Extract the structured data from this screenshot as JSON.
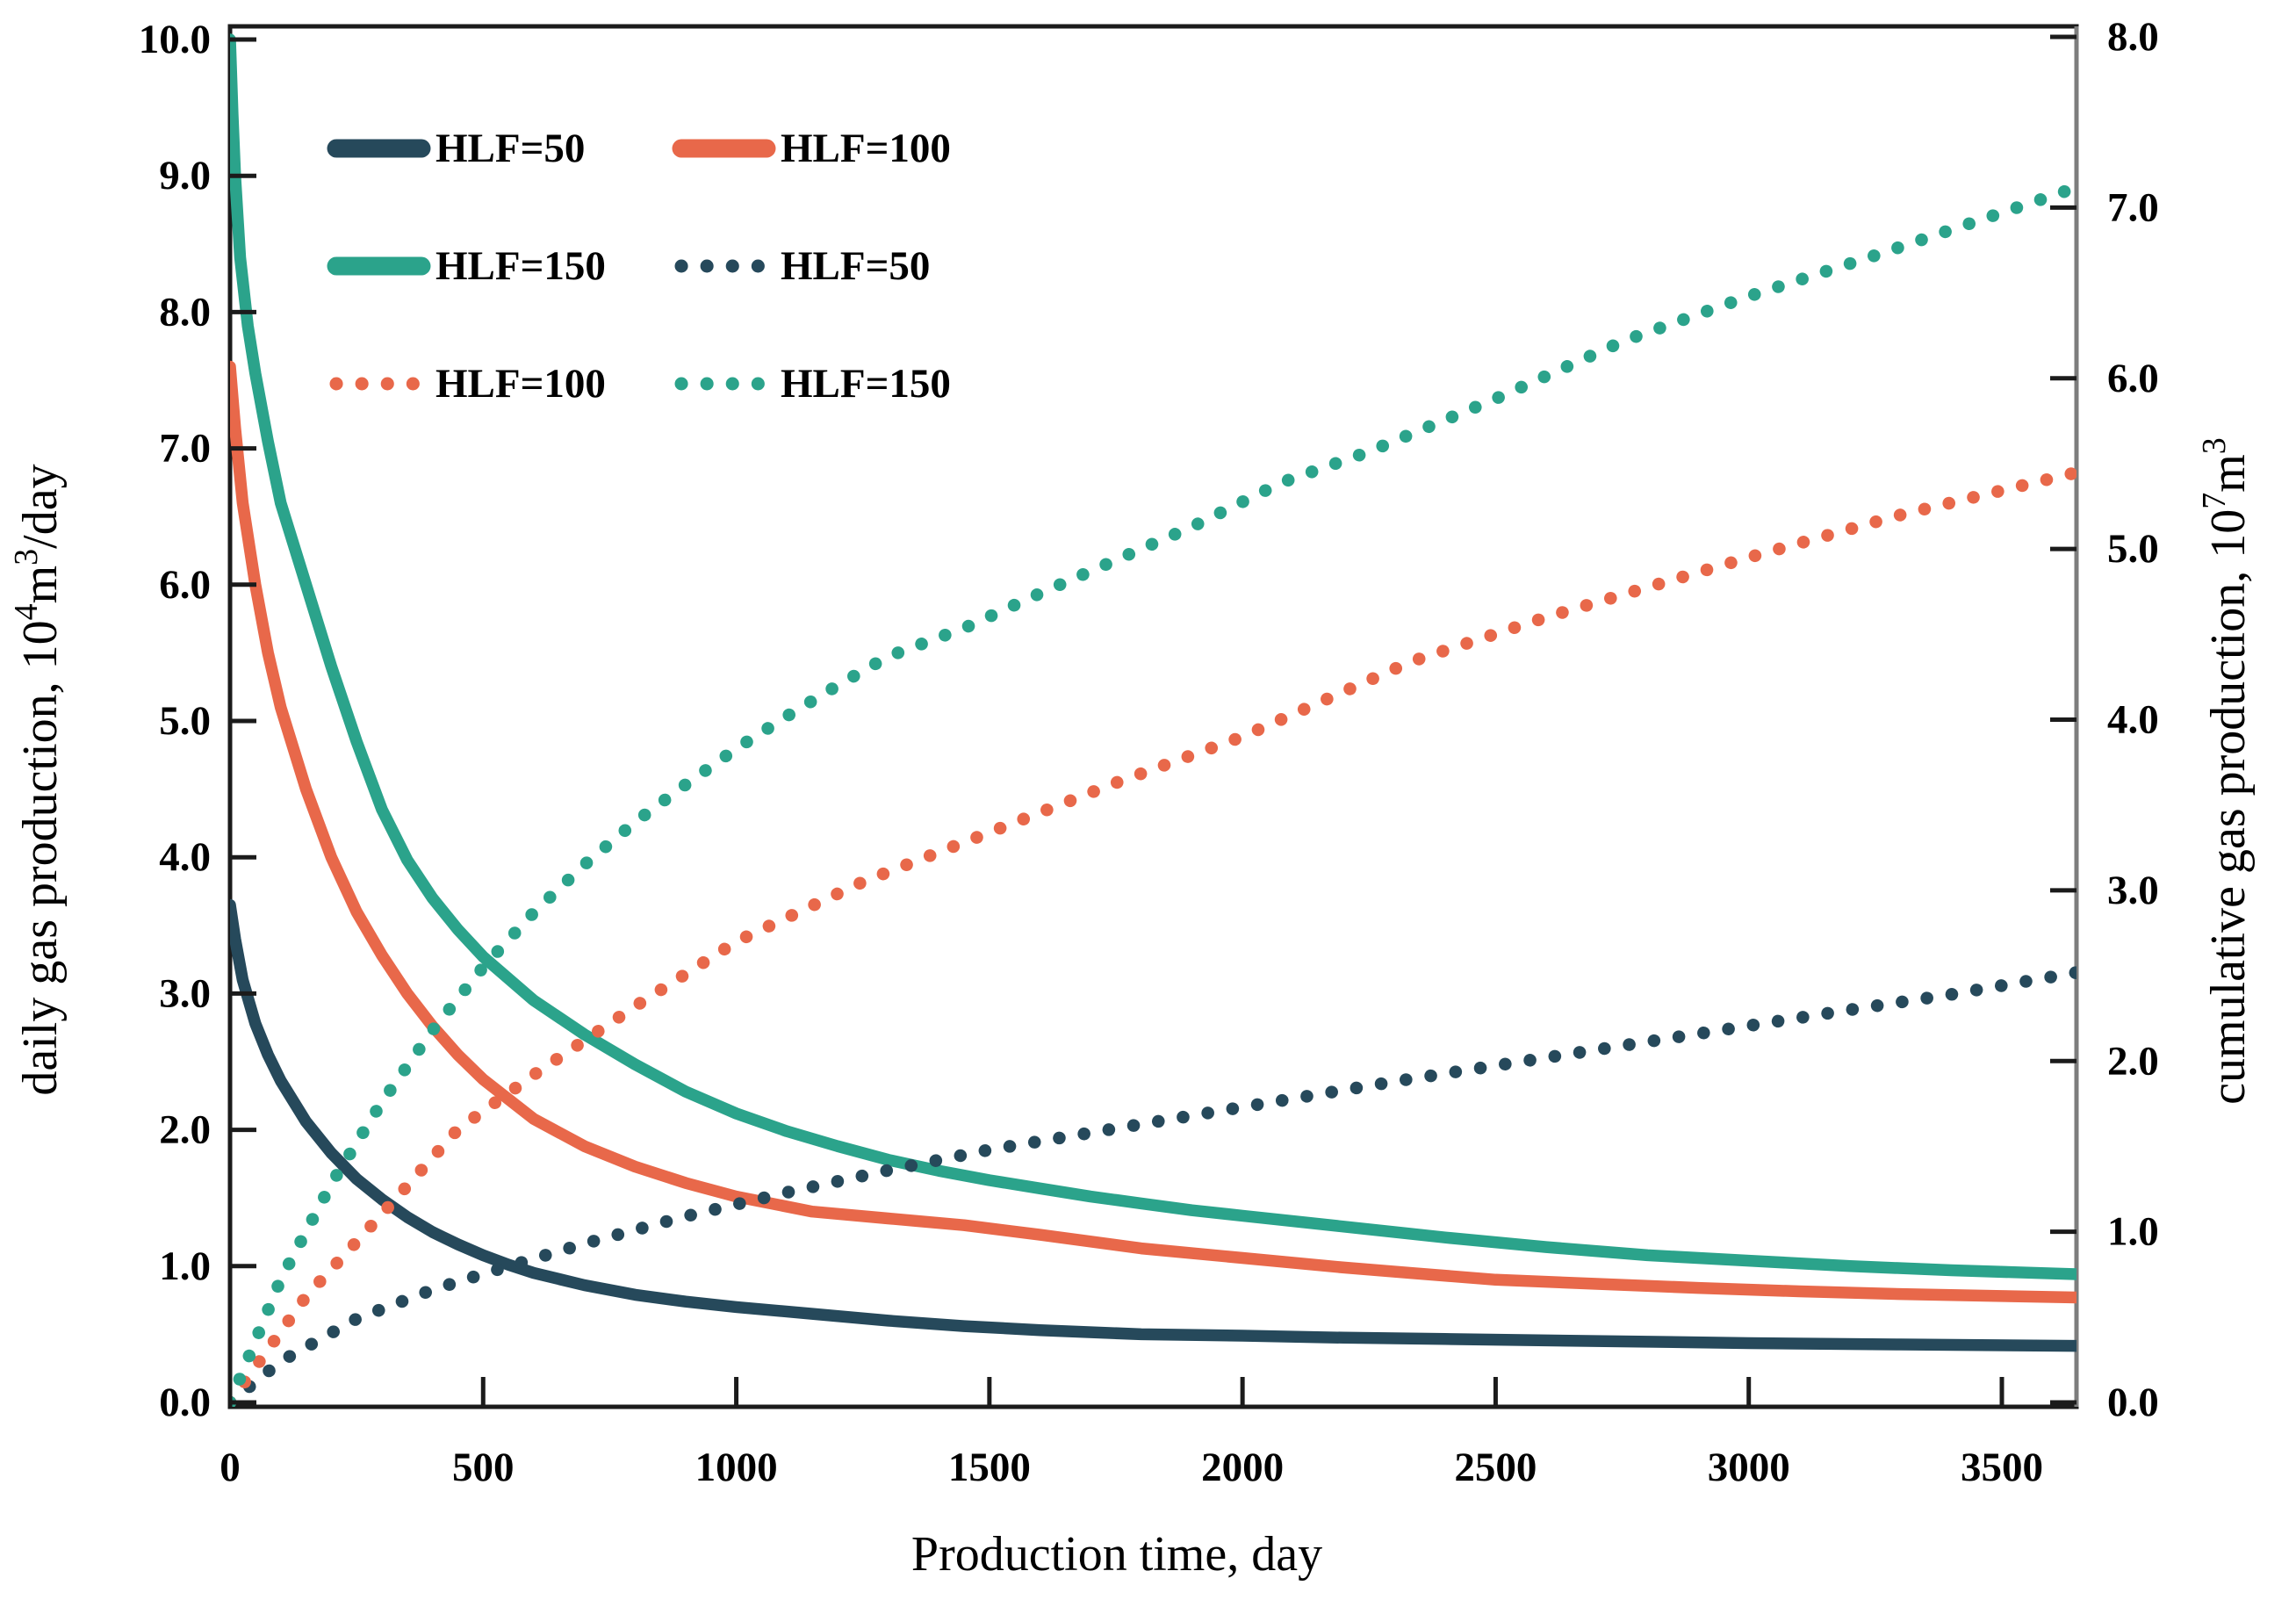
{
  "chart_data": {
    "type": "line",
    "title": "",
    "xlabel": "Production time, day",
    "ylabel_left": "daily gas production, 10⁴m³/day",
    "ylabel_right": "cumulative gas production, 10⁷m³",
    "ylabel_left_parts": [
      [
        "daily gas production, 10",
        false
      ],
      [
        "4",
        true
      ],
      [
        "m",
        false
      ],
      [
        "3",
        true
      ],
      [
        "/day",
        false
      ]
    ],
    "ylabel_right_parts": [
      [
        "cumulative gas production, 10",
        false
      ],
      [
        "7",
        true
      ],
      [
        "m",
        false
      ],
      [
        "3",
        true
      ]
    ],
    "x_range": [
      0,
      3650
    ],
    "x_ticks": [
      0,
      500,
      1000,
      1500,
      2000,
      2500,
      3000,
      3500
    ],
    "x_tick_labels": [
      "0",
      "500",
      "1000",
      "1500",
      "2000",
      "2500",
      "3000",
      "3500"
    ],
    "y_left_range": [
      0,
      10
    ],
    "y_left_ticks": [
      0,
      1,
      2,
      3,
      4,
      5,
      6,
      7,
      8,
      9,
      10
    ],
    "y_left_tick_labels": [
      "0.0",
      "1.0",
      "2.0",
      "3.0",
      "4.0",
      "5.0",
      "6.0",
      "7.0",
      "8.0",
      "9.0",
      "10.0"
    ],
    "y_right_range": [
      0,
      8
    ],
    "y_right_ticks": [
      0,
      1,
      2,
      3,
      4,
      5,
      6,
      7,
      8
    ],
    "y_right_tick_labels": [
      "0.0",
      "1.0",
      "2.0",
      "3.0",
      "4.0",
      "5.0",
      "6.0",
      "7.0",
      "8.0"
    ],
    "grid": false,
    "legend_position": "upper-left-inside",
    "colors": {
      "dark": "#26495B",
      "coral": "#E8684A",
      "teal": "#2BA38B",
      "axis": "#1b1b1b",
      "right_border": "#7d7d7d"
    },
    "legend": [
      {
        "label": "HLF=50",
        "style": "solid",
        "color": "#26495B"
      },
      {
        "label": "HLF=100",
        "style": "solid",
        "color": "#E8684A"
      },
      {
        "label": "HLF=150",
        "style": "solid",
        "color": "#2BA38B"
      },
      {
        "label": "HLF=50",
        "style": "dotted",
        "color": "#26495B"
      },
      {
        "label": "HLF=100",
        "style": "dotted",
        "color": "#E8684A"
      },
      {
        "label": "HLF=150",
        "style": "dotted",
        "color": "#2BA38B"
      }
    ],
    "series": [
      {
        "id": "daily-hlf-50",
        "name": "HLF=50",
        "role": "daily gas production",
        "axis": "left",
        "style": "solid",
        "color": "#26495B",
        "points": [
          [
            0,
            3.65
          ],
          [
            10,
            3.4
          ],
          [
            25,
            3.1
          ],
          [
            50,
            2.78
          ],
          [
            75,
            2.55
          ],
          [
            100,
            2.36
          ],
          [
            150,
            2.06
          ],
          [
            200,
            1.83
          ],
          [
            250,
            1.64
          ],
          [
            300,
            1.49
          ],
          [
            350,
            1.36
          ],
          [
            400,
            1.25
          ],
          [
            450,
            1.16
          ],
          [
            500,
            1.08
          ],
          [
            550,
            1.01
          ],
          [
            600,
            0.95
          ],
          [
            700,
            0.86
          ],
          [
            800,
            0.79
          ],
          [
            900,
            0.74
          ],
          [
            1000,
            0.7
          ],
          [
            1150,
            0.65
          ],
          [
            1300,
            0.6
          ],
          [
            1450,
            0.56
          ],
          [
            1600,
            0.53
          ],
          [
            1800,
            0.5
          ],
          [
            2000,
            0.49
          ],
          [
            2200,
            0.475
          ],
          [
            2400,
            0.465
          ],
          [
            2600,
            0.455
          ],
          [
            2800,
            0.445
          ],
          [
            3000,
            0.435
          ],
          [
            3300,
            0.425
          ],
          [
            3650,
            0.415
          ]
        ]
      },
      {
        "id": "daily-hlf-100",
        "name": "HLF=100",
        "role": "daily gas production",
        "axis": "left",
        "style": "solid",
        "color": "#E8684A",
        "points": [
          [
            0,
            7.6
          ],
          [
            10,
            7.15
          ],
          [
            25,
            6.6
          ],
          [
            50,
            6.0
          ],
          [
            75,
            5.5
          ],
          [
            100,
            5.1
          ],
          [
            150,
            4.5
          ],
          [
            200,
            4.0
          ],
          [
            250,
            3.6
          ],
          [
            300,
            3.28
          ],
          [
            350,
            3.0
          ],
          [
            400,
            2.76
          ],
          [
            450,
            2.55
          ],
          [
            500,
            2.37
          ],
          [
            600,
            2.08
          ],
          [
            700,
            1.88
          ],
          [
            800,
            1.73
          ],
          [
            900,
            1.61
          ],
          [
            1000,
            1.51
          ],
          [
            1150,
            1.4
          ],
          [
            1300,
            1.35
          ],
          [
            1450,
            1.3
          ],
          [
            1600,
            1.23
          ],
          [
            1800,
            1.13
          ],
          [
            2000,
            1.06
          ],
          [
            2200,
            0.99
          ],
          [
            2333,
            0.95
          ],
          [
            2500,
            0.9
          ],
          [
            2700,
            0.87
          ],
          [
            2900,
            0.84
          ],
          [
            3100,
            0.815
          ],
          [
            3300,
            0.795
          ],
          [
            3500,
            0.78
          ],
          [
            3650,
            0.77
          ]
        ]
      },
      {
        "id": "daily-hlf-150",
        "name": "HLF=150",
        "role": "daily gas production",
        "axis": "left",
        "style": "solid",
        "color": "#2BA38B",
        "points": [
          [
            0,
            10.0
          ],
          [
            5,
            9.45
          ],
          [
            10,
            9.0
          ],
          [
            20,
            8.4
          ],
          [
            35,
            7.9
          ],
          [
            50,
            7.55
          ],
          [
            75,
            7.05
          ],
          [
            100,
            6.6
          ],
          [
            125,
            6.3
          ],
          [
            150,
            6.0
          ],
          [
            200,
            5.4
          ],
          [
            250,
            4.85
          ],
          [
            300,
            4.35
          ],
          [
            350,
            3.98
          ],
          [
            400,
            3.7
          ],
          [
            450,
            3.47
          ],
          [
            500,
            3.27
          ],
          [
            600,
            2.95
          ],
          [
            700,
            2.7
          ],
          [
            800,
            2.48
          ],
          [
            900,
            2.28
          ],
          [
            1000,
            2.12
          ],
          [
            1100,
            1.99
          ],
          [
            1200,
            1.88
          ],
          [
            1300,
            1.78
          ],
          [
            1400,
            1.7
          ],
          [
            1500,
            1.63
          ],
          [
            1600,
            1.57
          ],
          [
            1700,
            1.51
          ],
          [
            1800,
            1.46
          ],
          [
            1900,
            1.41
          ],
          [
            2000,
            1.37
          ],
          [
            2200,
            1.29
          ],
          [
            2400,
            1.21
          ],
          [
            2600,
            1.14
          ],
          [
            2800,
            1.08
          ],
          [
            3000,
            1.04
          ],
          [
            3200,
            1.0
          ],
          [
            3400,
            0.97
          ],
          [
            3650,
            0.94
          ]
        ]
      },
      {
        "id": "cumulative-hlf-50",
        "name": "HLF=50",
        "role": "cumulative gas production",
        "axis": "right",
        "style": "dotted",
        "color": "#26495B",
        "points": [
          [
            0,
            0
          ],
          [
            100,
            0.24
          ],
          [
            250,
            0.49
          ],
          [
            400,
            0.66
          ],
          [
            508,
            0.76
          ],
          [
            700,
            0.93
          ],
          [
            900,
            1.09
          ],
          [
            1100,
            1.23
          ],
          [
            1300,
            1.36
          ],
          [
            1500,
            1.48
          ],
          [
            1700,
            1.58
          ],
          [
            2000,
            1.73
          ],
          [
            2300,
            1.88
          ],
          [
            2600,
            2.02
          ],
          [
            2900,
            2.16
          ],
          [
            3200,
            2.3
          ],
          [
            3400,
            2.39
          ],
          [
            3650,
            2.52
          ]
        ]
      },
      {
        "id": "cumulative-hlf-100",
        "name": "HLF=100",
        "role": "cumulative gas production",
        "axis": "right",
        "style": "dotted",
        "color": "#E8684A",
        "points": [
          [
            0,
            0
          ],
          [
            150,
            0.62
          ],
          [
            293,
            1.08
          ],
          [
            450,
            1.6
          ],
          [
            610,
            1.94
          ],
          [
            800,
            2.32
          ],
          [
            1000,
            2.7
          ],
          [
            1250,
            3.05
          ],
          [
            1466,
            3.3
          ],
          [
            1750,
            3.63
          ],
          [
            2000,
            3.9
          ],
          [
            2333,
            4.34
          ],
          [
            2600,
            4.6
          ],
          [
            3000,
            4.95
          ],
          [
            3300,
            5.2
          ],
          [
            3650,
            5.45
          ]
        ]
      },
      {
        "id": "cumulative-hlf-150",
        "name": "HLF=150",
        "role": "cumulative gas production",
        "axis": "right",
        "style": "dotted",
        "color": "#2BA38B",
        "points": [
          [
            0,
            0
          ],
          [
            100,
            0.72
          ],
          [
            200,
            1.28
          ],
          [
            300,
            1.76
          ],
          [
            400,
            2.18
          ],
          [
            500,
            2.55
          ],
          [
            600,
            2.87
          ],
          [
            700,
            3.15
          ],
          [
            800,
            3.4
          ],
          [
            900,
            3.62
          ],
          [
            1000,
            3.83
          ],
          [
            1100,
            4.02
          ],
          [
            1200,
            4.2
          ],
          [
            1300,
            4.37
          ],
          [
            1453,
            4.54
          ],
          [
            1600,
            4.74
          ],
          [
            1700,
            4.87
          ],
          [
            1800,
            5.0
          ],
          [
            1900,
            5.13
          ],
          [
            2078,
            5.39
          ],
          [
            2250,
            5.57
          ],
          [
            2500,
            5.88
          ],
          [
            2754,
            6.22
          ],
          [
            3000,
            6.48
          ],
          [
            3250,
            6.72
          ],
          [
            3500,
            6.97
          ],
          [
            3650,
            7.12
          ]
        ]
      }
    ]
  }
}
